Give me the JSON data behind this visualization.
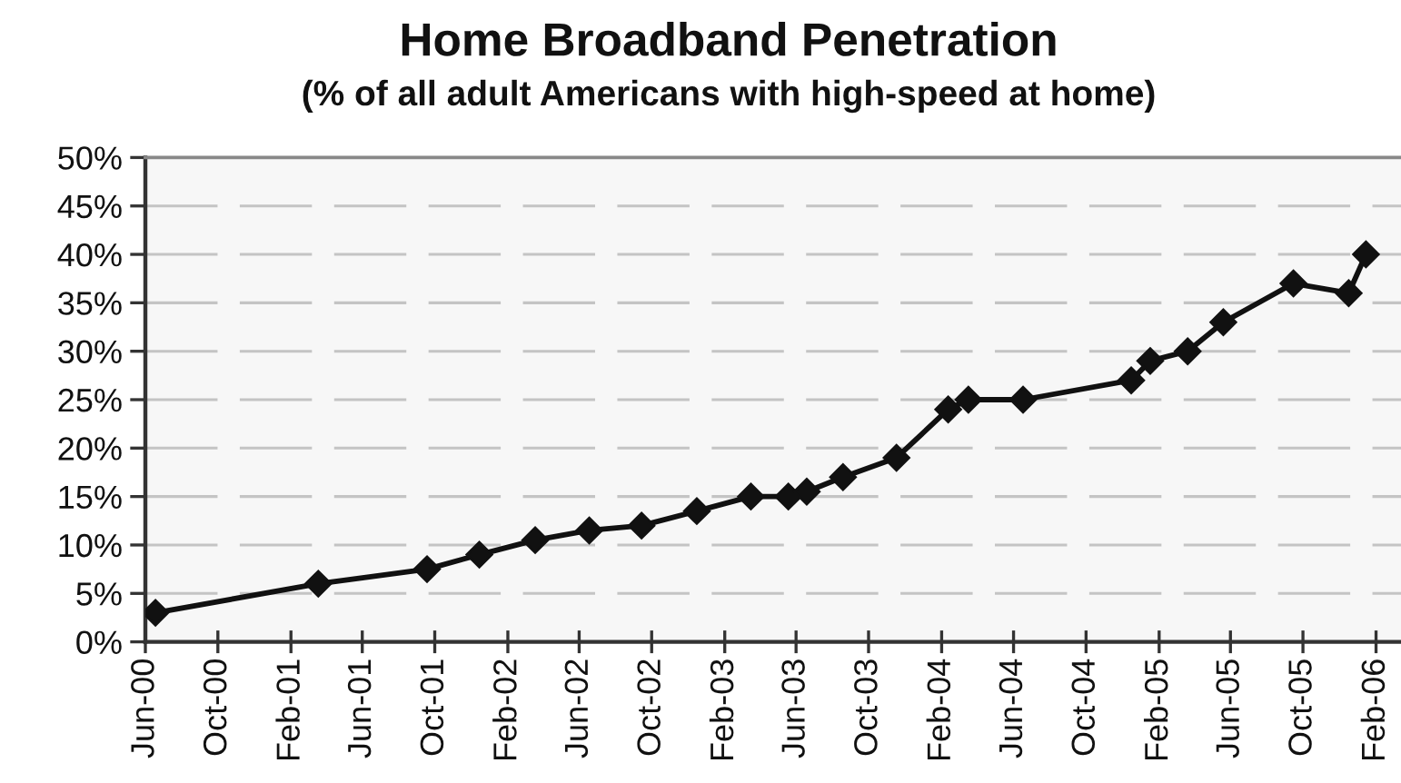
{
  "chart_data": {
    "type": "line",
    "title": "Home Broadband Penetration",
    "subtitle": "(% of all adult Americans with high-speed at home)",
    "x": [
      "2000-06-18",
      "2001-03-19",
      "2001-09-18",
      "2001-12-15",
      "2002-03-19",
      "2002-06-18",
      "2002-09-14",
      "2002-12-16",
      "2003-03-17",
      "2003-05-19",
      "2003-06-19",
      "2003-08-19",
      "2003-11-17",
      "2004-02-12",
      "2004-03-17",
      "2004-06-17",
      "2004-12-16",
      "2005-01-17",
      "2005-03-21",
      "2005-05-20",
      "2005-09-15",
      "2005-12-17",
      "2006-01-15"
    ],
    "series": [
      {
        "color": "#111111",
        "values": [
          3,
          6,
          7.5,
          9,
          10.5,
          11.5,
          12,
          13.5,
          15,
          15,
          15.5,
          17,
          19,
          24,
          25,
          25,
          27,
          29,
          30,
          33,
          37,
          36,
          40
        ]
      }
    ],
    "marker": "diamond",
    "line_style": "solid",
    "grid": "y",
    "xlim": [
      "2000-06-01",
      "2006-03-15"
    ],
    "xticks": [
      {
        "value": "2000-06-01",
        "label": "Jun-00"
      },
      {
        "value": "2000-10-01",
        "label": "Oct-00"
      },
      {
        "value": "2001-02-01",
        "label": "Feb-01"
      },
      {
        "value": "2001-06-01",
        "label": "Jun-01"
      },
      {
        "value": "2001-10-01",
        "label": "Oct-01"
      },
      {
        "value": "2002-02-01",
        "label": "Feb-02"
      },
      {
        "value": "2002-06-01",
        "label": "Jun-02"
      },
      {
        "value": "2002-10-01",
        "label": "Oct-02"
      },
      {
        "value": "2003-02-01",
        "label": "Feb-03"
      },
      {
        "value": "2003-06-01",
        "label": "Jun-03"
      },
      {
        "value": "2003-10-01",
        "label": "Oct-03"
      },
      {
        "value": "2004-02-01",
        "label": "Feb-04"
      },
      {
        "value": "2004-06-01",
        "label": "Jun-04"
      },
      {
        "value": "2004-10-01",
        "label": "Oct-04"
      },
      {
        "value": "2005-02-01",
        "label": "Feb-05"
      },
      {
        "value": "2005-06-01",
        "label": "Jun-05"
      },
      {
        "value": "2005-10-01",
        "label": "Oct-05"
      },
      {
        "value": "2006-02-01",
        "label": "Feb-06"
      }
    ],
    "ylim": [
      0,
      50
    ],
    "yticks": [
      {
        "value": 0,
        "label": "0%"
      },
      {
        "value": 5,
        "label": "5%"
      },
      {
        "value": 10,
        "label": "10%"
      },
      {
        "value": 15,
        "label": "15%"
      },
      {
        "value": 20,
        "label": "20%"
      },
      {
        "value": 25,
        "label": "25%"
      },
      {
        "value": 30,
        "label": "30%"
      },
      {
        "value": 35,
        "label": "35%"
      },
      {
        "value": 40,
        "label": "40%"
      },
      {
        "value": 45,
        "label": "45%"
      },
      {
        "value": 50,
        "label": "50%"
      }
    ]
  }
}
